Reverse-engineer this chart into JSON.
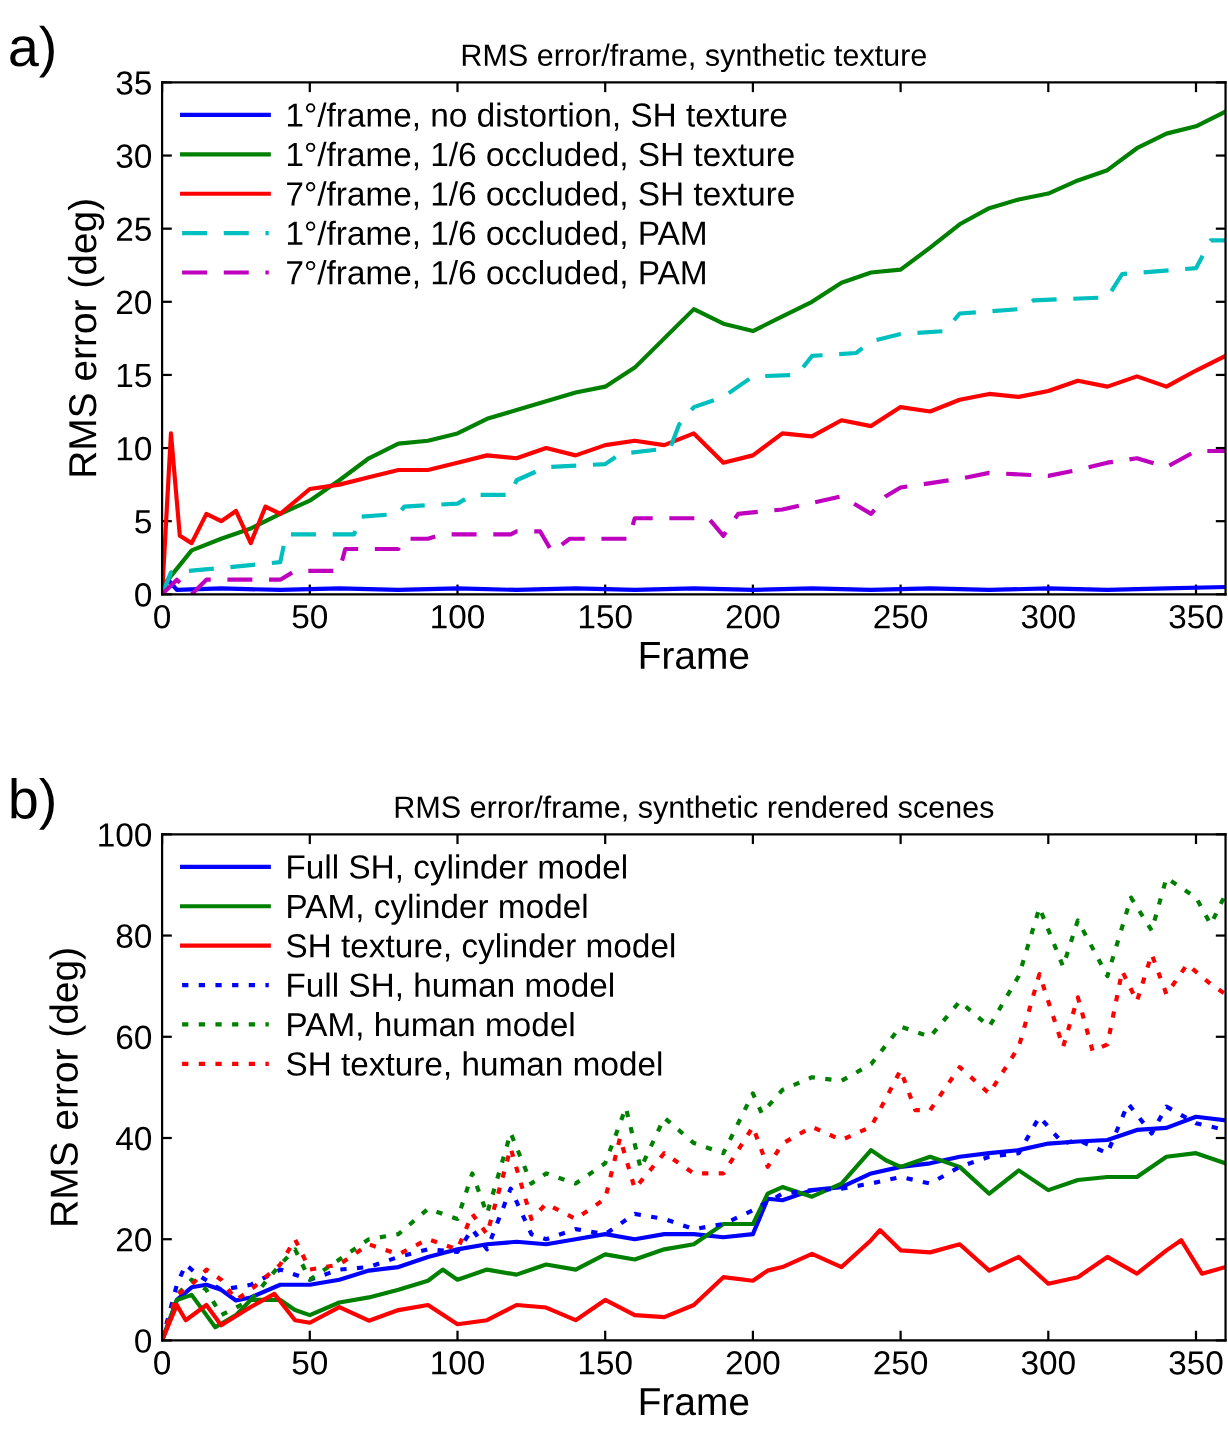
{
  "chart_data": [
    {
      "type": "line",
      "title": "RMS error/frame, synthetic texture",
      "xlabel": "Frame",
      "ylabel": "RMS error (deg)",
      "annotations": [
        "a)"
      ],
      "xlim": [
        0,
        360
      ],
      "xticks": [
        0,
        50,
        100,
        150,
        200,
        250,
        300,
        350
      ],
      "ylim": [
        0,
        35
      ],
      "yticks": [
        0,
        5,
        10,
        15,
        20,
        25,
        30,
        35
      ],
      "grid": false,
      "legend": "top left",
      "series": [
        {
          "name": "1°/frame, no distortion, SH texture",
          "color": "#0000ff",
          "line_style": "solid",
          "x": [
            0,
            2,
            5,
            20,
            40,
            60,
            80,
            100,
            120,
            140,
            160,
            180,
            200,
            220,
            240,
            260,
            280,
            300,
            320,
            340,
            360
          ],
          "values": [
            0,
            1,
            0.3,
            0.4,
            0.3,
            0.4,
            0.3,
            0.4,
            0.3,
            0.4,
            0.3,
            0.4,
            0.3,
            0.4,
            0.3,
            0.4,
            0.3,
            0.4,
            0.3,
            0.4,
            0.5
          ]
        },
        {
          "name": "1°/frame, 1/6 occluded, SH texture",
          "color": "#008000",
          "line_style": "solid",
          "x": [
            0,
            10,
            20,
            30,
            40,
            50,
            60,
            70,
            80,
            90,
            100,
            110,
            120,
            130,
            140,
            150,
            160,
            170,
            180,
            190,
            200,
            210,
            220,
            230,
            240,
            250,
            260,
            270,
            280,
            290,
            300,
            310,
            320,
            330,
            340,
            350,
            360
          ],
          "values": [
            0.5,
            3,
            3.8,
            4.5,
            5.5,
            6.4,
            7.8,
            9.3,
            10.3,
            10.5,
            11,
            12,
            12.6,
            13.2,
            13.8,
            14.2,
            15.5,
            17.5,
            19.5,
            18.5,
            18,
            19,
            20,
            21.3,
            22,
            22.2,
            23.7,
            25.3,
            26.4,
            27,
            27.4,
            28.3,
            29,
            30.5,
            31.5,
            32,
            33
          ]
        },
        {
          "name": "7°/frame, 1/6 occluded, SH texture",
          "color": "#ff0000",
          "line_style": "solid",
          "x": [
            0,
            3,
            6,
            10,
            15,
            20,
            25,
            30,
            35,
            40,
            50,
            60,
            70,
            80,
            90,
            100,
            110,
            120,
            130,
            140,
            150,
            160,
            170,
            180,
            190,
            200,
            210,
            220,
            230,
            240,
            250,
            260,
            270,
            280,
            290,
            300,
            310,
            320,
            330,
            340,
            350,
            360
          ],
          "values": [
            0,
            11,
            4,
            3.5,
            5.5,
            5,
            5.7,
            3.5,
            6,
            5.5,
            7.2,
            7.5,
            8,
            8.5,
            8.5,
            9,
            9.5,
            9.3,
            10,
            9.5,
            10.2,
            10.5,
            10.2,
            11,
            9,
            9.5,
            11,
            10.8,
            11.9,
            11.5,
            12.8,
            12.5,
            13.3,
            13.7,
            13.5,
            13.9,
            14.6,
            14.2,
            14.9,
            14.2,
            15.3,
            16.3
          ]
        },
        {
          "name": "1°/frame, 1/6 occluded, PAM",
          "color": "#00bfbf",
          "line_style": "dashed",
          "x": [
            0,
            3,
            20,
            40,
            42,
            65,
            67,
            80,
            82,
            100,
            105,
            118,
            120,
            130,
            150,
            155,
            172,
            175,
            180,
            190,
            200,
            215,
            220,
            235,
            240,
            250,
            265,
            270,
            290,
            295,
            320,
            325,
            350,
            355,
            360
          ],
          "values": [
            0,
            1.5,
            1.8,
            2.2,
            4.1,
            4.1,
            5.3,
            5.5,
            6,
            6.2,
            6.8,
            6.8,
            7.8,
            8.7,
            8.9,
            9.6,
            10,
            11.6,
            12.8,
            13.5,
            14.9,
            15,
            16.3,
            16.5,
            17.3,
            17.8,
            18,
            19.2,
            19.5,
            20.1,
            20.3,
            21.9,
            22.3,
            24.2,
            24.2
          ]
        },
        {
          "name": "7°/frame, 1/6 occluded, PAM",
          "color": "#bf00bf",
          "line_style": "dashed",
          "x": [
            0,
            5,
            10,
            15,
            40,
            45,
            60,
            62,
            80,
            82,
            90,
            95,
            118,
            120,
            128,
            132,
            138,
            158,
            160,
            185,
            190,
            195,
            210,
            230,
            240,
            245,
            250,
            270,
            280,
            300,
            310,
            320,
            330,
            340,
            350,
            360
          ],
          "values": [
            0,
            1,
            0,
            1,
            1,
            1.6,
            1.6,
            3.1,
            3.1,
            3.8,
            3.8,
            4.1,
            4.1,
            4.3,
            4.3,
            2.9,
            3.8,
            3.8,
            5.2,
            5.2,
            4,
            5.5,
            5.8,
            6.7,
            5.5,
            6.7,
            7.3,
            7.9,
            8.3,
            8.1,
            8.5,
            9,
            9.3,
            8.7,
            9.8,
            9.8
          ]
        }
      ]
    },
    {
      "type": "line",
      "title": "RMS error/frame, synthetic rendered scenes",
      "xlabel": "Frame",
      "ylabel": "RMS error (deg)",
      "annotations": [
        "b)"
      ],
      "xlim": [
        0,
        360
      ],
      "xticks": [
        0,
        50,
        100,
        150,
        200,
        250,
        300,
        350
      ],
      "ylim": [
        0,
        100
      ],
      "yticks": [
        0,
        20,
        40,
        60,
        80,
        100
      ],
      "grid": false,
      "legend": "top left",
      "series": [
        {
          "name": "Full SH, cylinder model",
          "color": "#0000ff",
          "line_style": "solid",
          "x": [
            0,
            5,
            10,
            15,
            20,
            25,
            30,
            40,
            50,
            60,
            70,
            80,
            90,
            100,
            110,
            120,
            130,
            140,
            150,
            160,
            170,
            180,
            190,
            200,
            205,
            210,
            220,
            230,
            240,
            250,
            260,
            270,
            280,
            290,
            300,
            310,
            320,
            330,
            340,
            350,
            360
          ],
          "values": [
            0,
            8,
            10.5,
            11,
            10,
            7.9,
            8.5,
            11,
            11,
            12,
            13.8,
            14.5,
            16.5,
            18,
            19,
            19.5,
            19,
            20,
            21,
            20,
            21,
            21,
            20.4,
            21,
            28,
            27.7,
            29.7,
            30.3,
            33,
            34.3,
            35,
            36.3,
            37,
            37.6,
            38.9,
            39.3,
            39.6,
            41.6,
            42,
            44.2,
            43.5
          ]
        },
        {
          "name": "PAM, cylinder model",
          "color": "#008000",
          "line_style": "solid",
          "x": [
            0,
            5,
            10,
            15,
            18,
            25,
            30,
            40,
            45,
            50,
            60,
            70,
            80,
            90,
            95,
            100,
            110,
            120,
            130,
            140,
            150,
            160,
            170,
            180,
            190,
            200,
            205,
            210,
            220,
            230,
            240,
            245,
            250,
            260,
            270,
            280,
            290,
            300,
            310,
            320,
            330,
            340,
            350,
            360
          ],
          "values": [
            0,
            8,
            9,
            5,
            2.6,
            5,
            8,
            8,
            6,
            5,
            7.5,
            8.5,
            10,
            11.8,
            14,
            12,
            14,
            13,
            15,
            14,
            17,
            16,
            18,
            19,
            23,
            23,
            29,
            30.3,
            28.4,
            31,
            37.6,
            35.6,
            34.3,
            36.3,
            34.3,
            29,
            33.6,
            29.7,
            31.7,
            32.3,
            32.3,
            36.3,
            37,
            35
          ]
        },
        {
          "name": "SH texture, cylinder model",
          "color": "#ff0000",
          "line_style": "solid",
          "x": [
            0,
            5,
            8,
            15,
            20,
            30,
            38,
            45,
            50,
            60,
            70,
            80,
            90,
            100,
            110,
            120,
            130,
            140,
            150,
            160,
            170,
            180,
            190,
            200,
            205,
            210,
            220,
            230,
            240,
            243,
            250,
            260,
            270,
            280,
            290,
            300,
            310,
            320,
            330,
            340,
            345,
            352,
            360
          ],
          "values": [
            0,
            7,
            4,
            7,
            3,
            6.6,
            9.2,
            4,
            3.5,
            6.6,
            3.9,
            6,
            7,
            3.2,
            4,
            7,
            6.5,
            4,
            8,
            5,
            4.6,
            7,
            12.5,
            11.8,
            13.8,
            14.5,
            17.1,
            14.5,
            19.8,
            21.8,
            17.8,
            17.4,
            19,
            13.8,
            16.5,
            11.2,
            12.5,
            16.5,
            13.2,
            17.8,
            19.8,
            13.2,
            14.5
          ]
        },
        {
          "name": "Full SH, human model",
          "color": "#0000ff",
          "line_style": "dotted",
          "x": [
            0,
            5,
            8,
            12,
            20,
            30,
            40,
            50,
            60,
            70,
            80,
            90,
            100,
            105,
            110,
            118,
            125,
            130,
            140,
            150,
            160,
            170,
            180,
            190,
            200,
            210,
            220,
            230,
            240,
            250,
            260,
            270,
            280,
            290,
            297,
            305,
            310,
            320,
            327,
            335,
            340,
            350,
            360
          ],
          "values": [
            0,
            11,
            15,
            13,
            10,
            11,
            14,
            12,
            14,
            14.5,
            16.5,
            18,
            17.5,
            22,
            18,
            30,
            21,
            20,
            22,
            21,
            25,
            24,
            22,
            23,
            25.7,
            29,
            29.7,
            30,
            31,
            32.3,
            31,
            34.3,
            36.3,
            37,
            44.2,
            38.9,
            39.6,
            37,
            46.8,
            40.9,
            46.2,
            42.9,
            41.6
          ]
        },
        {
          "name": "PAM, human model",
          "color": "#008000",
          "line_style": "dotted",
          "x": [
            0,
            5,
            10,
            15,
            20,
            30,
            40,
            45,
            50,
            60,
            70,
            80,
            90,
            100,
            105,
            110,
            118,
            125,
            130,
            140,
            150,
            157,
            162,
            170,
            180,
            190,
            200,
            203,
            210,
            220,
            230,
            240,
            250,
            260,
            270,
            280,
            290,
            297,
            305,
            310,
            320,
            328,
            335,
            340,
            350,
            355,
            360
          ],
          "values": [
            0,
            9,
            12,
            10,
            5,
            8,
            15,
            18,
            12,
            16,
            20,
            21,
            26,
            24,
            33,
            25,
            41,
            31,
            33,
            31,
            35,
            46,
            34,
            44,
            39,
            37,
            48.8,
            44.9,
            49.5,
            52,
            51.3,
            54.6,
            62,
            60,
            67,
            62,
            72,
            85.5,
            73.9,
            83,
            72,
            87.5,
            81,
            91.4,
            87.5,
            82.2,
            88.2
          ]
        },
        {
          "name": "SH texture, human model",
          "color": "#ff0000",
          "line_style": "dotted",
          "x": [
            0,
            5,
            10,
            15,
            20,
            25,
            30,
            40,
            45,
            50,
            60,
            70,
            80,
            90,
            100,
            105,
            110,
            118,
            125,
            130,
            140,
            150,
            155,
            160,
            170,
            180,
            190,
            200,
            205,
            210,
            220,
            230,
            240,
            250,
            255,
            260,
            270,
            280,
            290,
            297,
            305,
            310,
            315,
            320,
            325,
            330,
            335,
            340,
            347,
            355,
            360
          ],
          "values": [
            0,
            9,
            11,
            14,
            12,
            8,
            10,
            15,
            20,
            14,
            15,
            19,
            17,
            20,
            18,
            25,
            21,
            38,
            24,
            27,
            24,
            28,
            40,
            30,
            37,
            33,
            33,
            42.2,
            34.3,
            38.9,
            42.2,
            39.6,
            42.2,
            53.4,
            45.5,
            45.5,
            54,
            48.8,
            58,
            72.4,
            58,
            67.8,
            57.2,
            58.5,
            73,
            67,
            76.3,
            68.4,
            74.3,
            70.4,
            68.4
          ]
        }
      ]
    }
  ]
}
